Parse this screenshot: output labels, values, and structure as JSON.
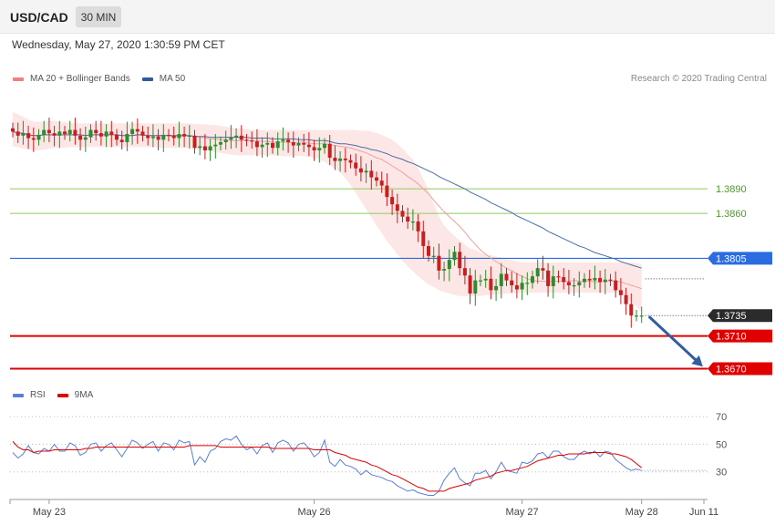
{
  "header": {
    "pair": "USD/CAD",
    "timeframe": "30 MIN",
    "datetime": "Wednesday, May 27, 2020 1:30:59 PM CET"
  },
  "legend_price": [
    {
      "label": "MA 20 + Bollinger Bands",
      "color": "#f08080"
    },
    {
      "label": "MA 50",
      "color": "#2f5a9e"
    }
  ],
  "legend_rsi": [
    {
      "label": "RSI",
      "color": "#5b7fd6"
    },
    {
      "label": "9MA",
      "color": "#e00000"
    }
  ],
  "credit": "Research © 2020 Trading Central",
  "colors": {
    "up": "#2e8b2e",
    "down": "#c81e1e",
    "resistance_green": "#8fca5b",
    "pivot_blue": "#2b6de0",
    "support_red": "#e00000",
    "current": "#2b2b2b",
    "band_fill": "#fde2e2",
    "ma20": "#f2a0a0",
    "ma50": "#4a6fa8",
    "arrow": "#2f5fa0"
  },
  "chart_data": [
    {
      "type": "candlestick",
      "title": "USD/CAD 30 MIN",
      "x_ticks": [
        "May 23",
        "May 26",
        "May 27",
        "May 28",
        "Jun 11"
      ],
      "ylim": [
        1.3655,
        1.4015
      ],
      "close": [
        1.396,
        1.3955,
        1.3958,
        1.3952,
        1.395,
        1.3956,
        1.3962,
        1.3958,
        1.3955,
        1.396,
        1.3957,
        1.3962,
        1.3955,
        1.395,
        1.3953,
        1.3962,
        1.3958,
        1.3954,
        1.396,
        1.3956,
        1.395,
        1.3947,
        1.3957,
        1.3963,
        1.396,
        1.3955,
        1.3952,
        1.3954,
        1.395,
        1.3956,
        1.3955,
        1.3952,
        1.3957,
        1.3954,
        1.3955,
        1.394,
        1.3942,
        1.3937,
        1.3942,
        1.3944,
        1.3947,
        1.395,
        1.3953,
        1.3955,
        1.395,
        1.3949,
        1.3948,
        1.3941,
        1.3944,
        1.3946,
        1.394,
        1.3948,
        1.395,
        1.3947,
        1.3943,
        1.3946,
        1.3944,
        1.3941,
        1.3937,
        1.394,
        1.3945,
        1.3928,
        1.3924,
        1.3927,
        1.3925,
        1.3922,
        1.3915,
        1.391,
        1.3912,
        1.3904,
        1.39,
        1.3894,
        1.388,
        1.3871,
        1.3863,
        1.3856,
        1.385,
        1.385,
        1.3838,
        1.382,
        1.3808,
        1.3808,
        1.379,
        1.3792,
        1.3803,
        1.3813,
        1.3793,
        1.3784,
        1.3762,
        1.3778,
        1.3778,
        1.378,
        1.3766,
        1.3771,
        1.3786,
        1.3778,
        1.3772,
        1.3767,
        1.3775,
        1.3775,
        1.3783,
        1.3793,
        1.379,
        1.3771,
        1.3783,
        1.3782,
        1.3776,
        1.3772,
        1.3772,
        1.3776,
        1.378,
        1.3778,
        1.3781,
        1.3776,
        1.3779,
        1.3778,
        1.3766,
        1.376,
        1.3749,
        1.3735,
        1.3735,
        1.3735
      ],
      "sma20": [
        1.396,
        1.3958,
        1.3958,
        1.3956,
        1.3955,
        1.3955,
        1.3956,
        1.3956,
        1.3956,
        1.3956,
        1.3956,
        1.3956,
        1.3956,
        1.3956,
        1.3955,
        1.3956,
        1.3956,
        1.3956,
        1.3956,
        1.3956,
        1.3956,
        1.3955,
        1.3955,
        1.3955,
        1.3956,
        1.3956,
        1.3955,
        1.3955,
        1.3955,
        1.3955,
        1.3955,
        1.3954,
        1.3954,
        1.3955,
        1.3955,
        1.3954,
        1.3953,
        1.3952,
        1.3951,
        1.3951,
        1.395,
        1.395,
        1.3949,
        1.3949,
        1.3949,
        1.3949,
        1.3949,
        1.3949,
        1.3948,
        1.3948,
        1.3947,
        1.3947,
        1.3947,
        1.3947,
        1.3946,
        1.3947,
        1.3947,
        1.3946,
        1.3945,
        1.3945,
        1.3945,
        1.3944,
        1.3943,
        1.3942,
        1.3941,
        1.394,
        1.3938,
        1.3936,
        1.3934,
        1.3931,
        1.3928,
        1.3926,
        1.3922,
        1.3918,
        1.3914,
        1.391,
        1.3905,
        1.3901,
        1.3896,
        1.389,
        1.3884,
        1.3876,
        1.3869,
        1.3862,
        1.3856,
        1.385,
        1.3844,
        1.3837,
        1.3829,
        1.3822,
        1.3815,
        1.381,
        1.3805,
        1.3801,
        1.3797,
        1.3793,
        1.379,
        1.3786,
        1.3783,
        1.378,
        1.3778,
        1.3777,
        1.3777,
        1.3776,
        1.3777,
        1.3777,
        1.3777,
        1.3777,
        1.3778,
        1.3777,
        1.3777,
        1.3777,
        1.3776,
        1.3776,
        1.3777,
        1.3777,
        1.3777,
        1.3776,
        1.3774,
        1.3772,
        1.377,
        1.3768
      ],
      "sma50": [
        1.396,
        1.3958,
        1.3958,
        1.3956,
        1.3955,
        1.3955,
        1.3956,
        1.3956,
        1.3956,
        1.3956,
        1.3956,
        1.3956,
        1.3956,
        1.3956,
        1.3955,
        1.3956,
        1.3956,
        1.3956,
        1.3956,
        1.3956,
        1.3956,
        1.3955,
        1.3955,
        1.3955,
        1.3956,
        1.3956,
        1.3955,
        1.3955,
        1.3955,
        1.3955,
        1.3955,
        1.3955,
        1.3955,
        1.3955,
        1.3955,
        1.3954,
        1.3954,
        1.3954,
        1.3953,
        1.3953,
        1.3953,
        1.3953,
        1.3953,
        1.3953,
        1.3953,
        1.3953,
        1.3952,
        1.3952,
        1.3952,
        1.3952,
        1.3951,
        1.3951,
        1.3951,
        1.3951,
        1.3951,
        1.395,
        1.395,
        1.395,
        1.3949,
        1.3949,
        1.3949,
        1.3948,
        1.3946,
        1.3945,
        1.3945,
        1.3944,
        1.3943,
        1.3941,
        1.394,
        1.3938,
        1.3937,
        1.3935,
        1.3933,
        1.393,
        1.3928,
        1.3926,
        1.3923,
        1.3921,
        1.3918,
        1.3915,
        1.3912,
        1.3909,
        1.3905,
        1.3902,
        1.3899,
        1.3896,
        1.3893,
        1.389,
        1.3886,
        1.3883,
        1.388,
        1.3877,
        1.3873,
        1.387,
        1.3867,
        1.3864,
        1.3861,
        1.3857,
        1.3854,
        1.3851,
        1.3848,
        1.3845,
        1.3842,
        1.3838,
        1.3835,
        1.3832,
        1.3829,
        1.3826,
        1.3823,
        1.382,
        1.3818,
        1.3815,
        1.3812,
        1.381,
        1.3808,
        1.3806,
        1.3804,
        1.3801,
        1.3799,
        1.3797,
        1.3795,
        1.3793
      ],
      "bb_upper": [
        1.3984,
        1.3981,
        1.3978,
        1.3975,
        1.3972,
        1.3972,
        1.3972,
        1.3973,
        1.3973,
        1.3972,
        1.3972,
        1.3971,
        1.397,
        1.397,
        1.397,
        1.397,
        1.397,
        1.397,
        1.397,
        1.397,
        1.397,
        1.397,
        1.397,
        1.397,
        1.397,
        1.397,
        1.397,
        1.397,
        1.397,
        1.397,
        1.397,
        1.397,
        1.397,
        1.397,
        1.397,
        1.3969,
        1.3969,
        1.3969,
        1.3968,
        1.3968,
        1.3967,
        1.3966,
        1.3965,
        1.3964,
        1.3964,
        1.3963,
        1.3962,
        1.3962,
        1.3962,
        1.3962,
        1.3962,
        1.3962,
        1.3962,
        1.3962,
        1.3962,
        1.3962,
        1.3962,
        1.3962,
        1.3962,
        1.3962,
        1.3962,
        1.3962,
        1.3962,
        1.3962,
        1.3962,
        1.3962,
        1.3962,
        1.3961,
        1.3961,
        1.396,
        1.3958,
        1.3956,
        1.3953,
        1.395,
        1.3945,
        1.3939,
        1.3932,
        1.3926,
        1.3915,
        1.3902,
        1.3888,
        1.3872,
        1.3856,
        1.3845,
        1.3838,
        1.3832,
        1.3827,
        1.3822,
        1.3817,
        1.3815,
        1.3812,
        1.381,
        1.3809,
        1.3807,
        1.3806,
        1.3804,
        1.3803,
        1.3801,
        1.38,
        1.38,
        1.38,
        1.38,
        1.38,
        1.38,
        1.38,
        1.38,
        1.38,
        1.38,
        1.38,
        1.38,
        1.38,
        1.38,
        1.38,
        1.38,
        1.38,
        1.38,
        1.38,
        1.38,
        1.38,
        1.38,
        1.3799,
        1.3798
      ],
      "bb_lower": [
        1.3942,
        1.3941,
        1.3939,
        1.3938,
        1.3937,
        1.3937,
        1.3938,
        1.3939,
        1.394,
        1.394,
        1.394,
        1.3941,
        1.3941,
        1.3941,
        1.3941,
        1.3941,
        1.3941,
        1.3941,
        1.3941,
        1.3941,
        1.3941,
        1.3941,
        1.3941,
        1.3941,
        1.3941,
        1.3941,
        1.3941,
        1.3941,
        1.394,
        1.394,
        1.394,
        1.394,
        1.394,
        1.394,
        1.394,
        1.3939,
        1.3938,
        1.3937,
        1.3936,
        1.3935,
        1.3934,
        1.3933,
        1.3932,
        1.3931,
        1.3931,
        1.3931,
        1.3931,
        1.3931,
        1.3931,
        1.3931,
        1.3931,
        1.393,
        1.393,
        1.393,
        1.393,
        1.393,
        1.393,
        1.3929,
        1.3928,
        1.3926,
        1.3923,
        1.3919,
        1.3915,
        1.391,
        1.3903,
        1.3895,
        1.3885,
        1.3875,
        1.3865,
        1.3855,
        1.3845,
        1.3836,
        1.3826,
        1.3818,
        1.381,
        1.3802,
        1.3795,
        1.3789,
        1.3783,
        1.3778,
        1.3773,
        1.377,
        1.3766,
        1.3764,
        1.3762,
        1.376,
        1.3759,
        1.3759,
        1.3759,
        1.3759,
        1.3759,
        1.376,
        1.376,
        1.3761,
        1.3761,
        1.3762,
        1.3762,
        1.3763,
        1.3763,
        1.3763,
        1.3763,
        1.3763,
        1.3763,
        1.3763,
        1.3763,
        1.3763,
        1.3763,
        1.3763,
        1.3763,
        1.3763,
        1.3763,
        1.3763,
        1.3763,
        1.3763,
        1.3763,
        1.3763,
        1.3763,
        1.3763,
        1.3758,
        1.3752,
        1.3746,
        1.374
      ],
      "levels": [
        {
          "value": 1.389,
          "label": "1.3890",
          "kind": "resistance-2",
          "style": "green-text"
        },
        {
          "value": 1.386,
          "label": "1.3860",
          "kind": "resistance-1",
          "style": "green-text"
        },
        {
          "value": 1.3805,
          "label": "1.3805",
          "kind": "pivot",
          "style": "blue-tag"
        },
        {
          "value": 1.3735,
          "label": "1.3735",
          "kind": "current",
          "style": "dark-tag"
        },
        {
          "value": 1.371,
          "label": "1.3710",
          "kind": "support-1",
          "style": "red-tag"
        },
        {
          "value": 1.367,
          "label": "1.3670",
          "kind": "support-2",
          "style": "red-tag"
        }
      ],
      "projection": {
        "from": 1.3735,
        "to": 1.367,
        "direction": "down"
      }
    },
    {
      "type": "line",
      "title": "RSI",
      "ylim": [
        12,
        78
      ],
      "y_ticks": [
        70,
        50,
        30
      ],
      "series": [
        {
          "name": "RSI",
          "values": [
            44,
            40,
            43,
            49,
            44,
            43,
            47,
            45,
            50,
            45,
            45,
            51,
            49,
            42,
            44,
            50,
            51,
            45,
            49,
            51,
            46,
            41,
            47,
            53,
            51,
            47,
            50,
            52,
            45,
            51,
            50,
            46,
            53,
            51,
            52,
            35,
            41,
            37,
            45,
            47,
            52,
            54,
            53,
            56,
            50,
            46,
            48,
            43,
            49,
            51,
            44,
            51,
            53,
            51,
            45,
            50,
            51,
            47,
            41,
            44,
            53,
            37,
            34,
            39,
            35,
            34,
            32,
            28,
            31,
            28,
            27,
            26,
            24,
            23,
            20,
            18,
            16,
            17,
            15,
            14,
            13,
            13,
            16,
            24,
            29,
            33,
            25,
            22,
            20,
            29,
            29,
            31,
            25,
            30,
            37,
            31,
            30,
            29,
            37,
            36,
            38,
            43,
            44,
            40,
            45,
            45,
            41,
            39,
            39,
            43,
            45,
            43,
            45,
            41,
            45,
            44,
            39,
            36,
            33,
            31,
            32,
            31
          ]
        },
        {
          "name": "9MA",
          "values": [
            52,
            48,
            46,
            46,
            44,
            45,
            45,
            45,
            46,
            46,
            46,
            46,
            46,
            46,
            47,
            47,
            48,
            48,
            48,
            48,
            48,
            48,
            48,
            48,
            48,
            48,
            48,
            48,
            48,
            48,
            48,
            48,
            48,
            48,
            49,
            49,
            49,
            49,
            49,
            49,
            48,
            48,
            48,
            48,
            48,
            48,
            48,
            48,
            48,
            48,
            47,
            47,
            47,
            47,
            47,
            47,
            47,
            47,
            46,
            46,
            46,
            46,
            44,
            43,
            42,
            40,
            39,
            38,
            37,
            35,
            34,
            32,
            30,
            28,
            27,
            25,
            23,
            21,
            19,
            18,
            16,
            16,
            16,
            16,
            18,
            19,
            20,
            21,
            22,
            24,
            25,
            26,
            27,
            29,
            30,
            31,
            31,
            32,
            33,
            34,
            36,
            38,
            39,
            40,
            41,
            42,
            42,
            43,
            43,
            43,
            43,
            44,
            44,
            44,
            44,
            43,
            43,
            42,
            41,
            39,
            36,
            33
          ]
        }
      ]
    }
  ]
}
